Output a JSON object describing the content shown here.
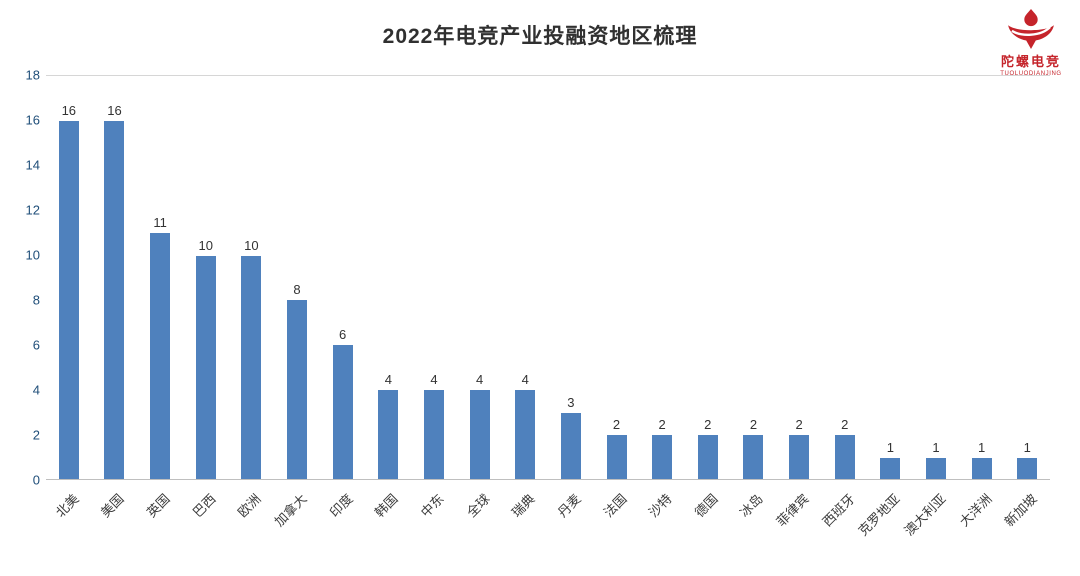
{
  "title": "2022年电竞产业投融资地区梳理",
  "logo": {
    "name": "陀螺电竞",
    "subtitle": "TUOLUODIANJING",
    "color": "#c5242b"
  },
  "chart_data": {
    "type": "bar",
    "title": "2022年电竞产业投融资地区梳理",
    "categories": [
      "北美",
      "美国",
      "英国",
      "巴西",
      "欧洲",
      "加拿大",
      "印度",
      "韩国",
      "中东",
      "全球",
      "瑞典",
      "丹麦",
      "法国",
      "沙特",
      "德国",
      "冰岛",
      "菲律宾",
      "西班牙",
      "克罗地亚",
      "澳大利亚",
      "大洋洲",
      "新加坡"
    ],
    "values": [
      16,
      16,
      11,
      10,
      10,
      8,
      6,
      4,
      4,
      4,
      4,
      3,
      2,
      2,
      2,
      2,
      2,
      2,
      1,
      1,
      1,
      1
    ],
    "xlabel": "",
    "ylabel": "",
    "ylim": [
      0,
      18
    ],
    "ytick_step": 2,
    "yticks": [
      0,
      2,
      4,
      6,
      8,
      10,
      12,
      14,
      16,
      18
    ],
    "bar_color": "#4f81bd",
    "grid": false,
    "legend": "none",
    "data_labels": true
  }
}
